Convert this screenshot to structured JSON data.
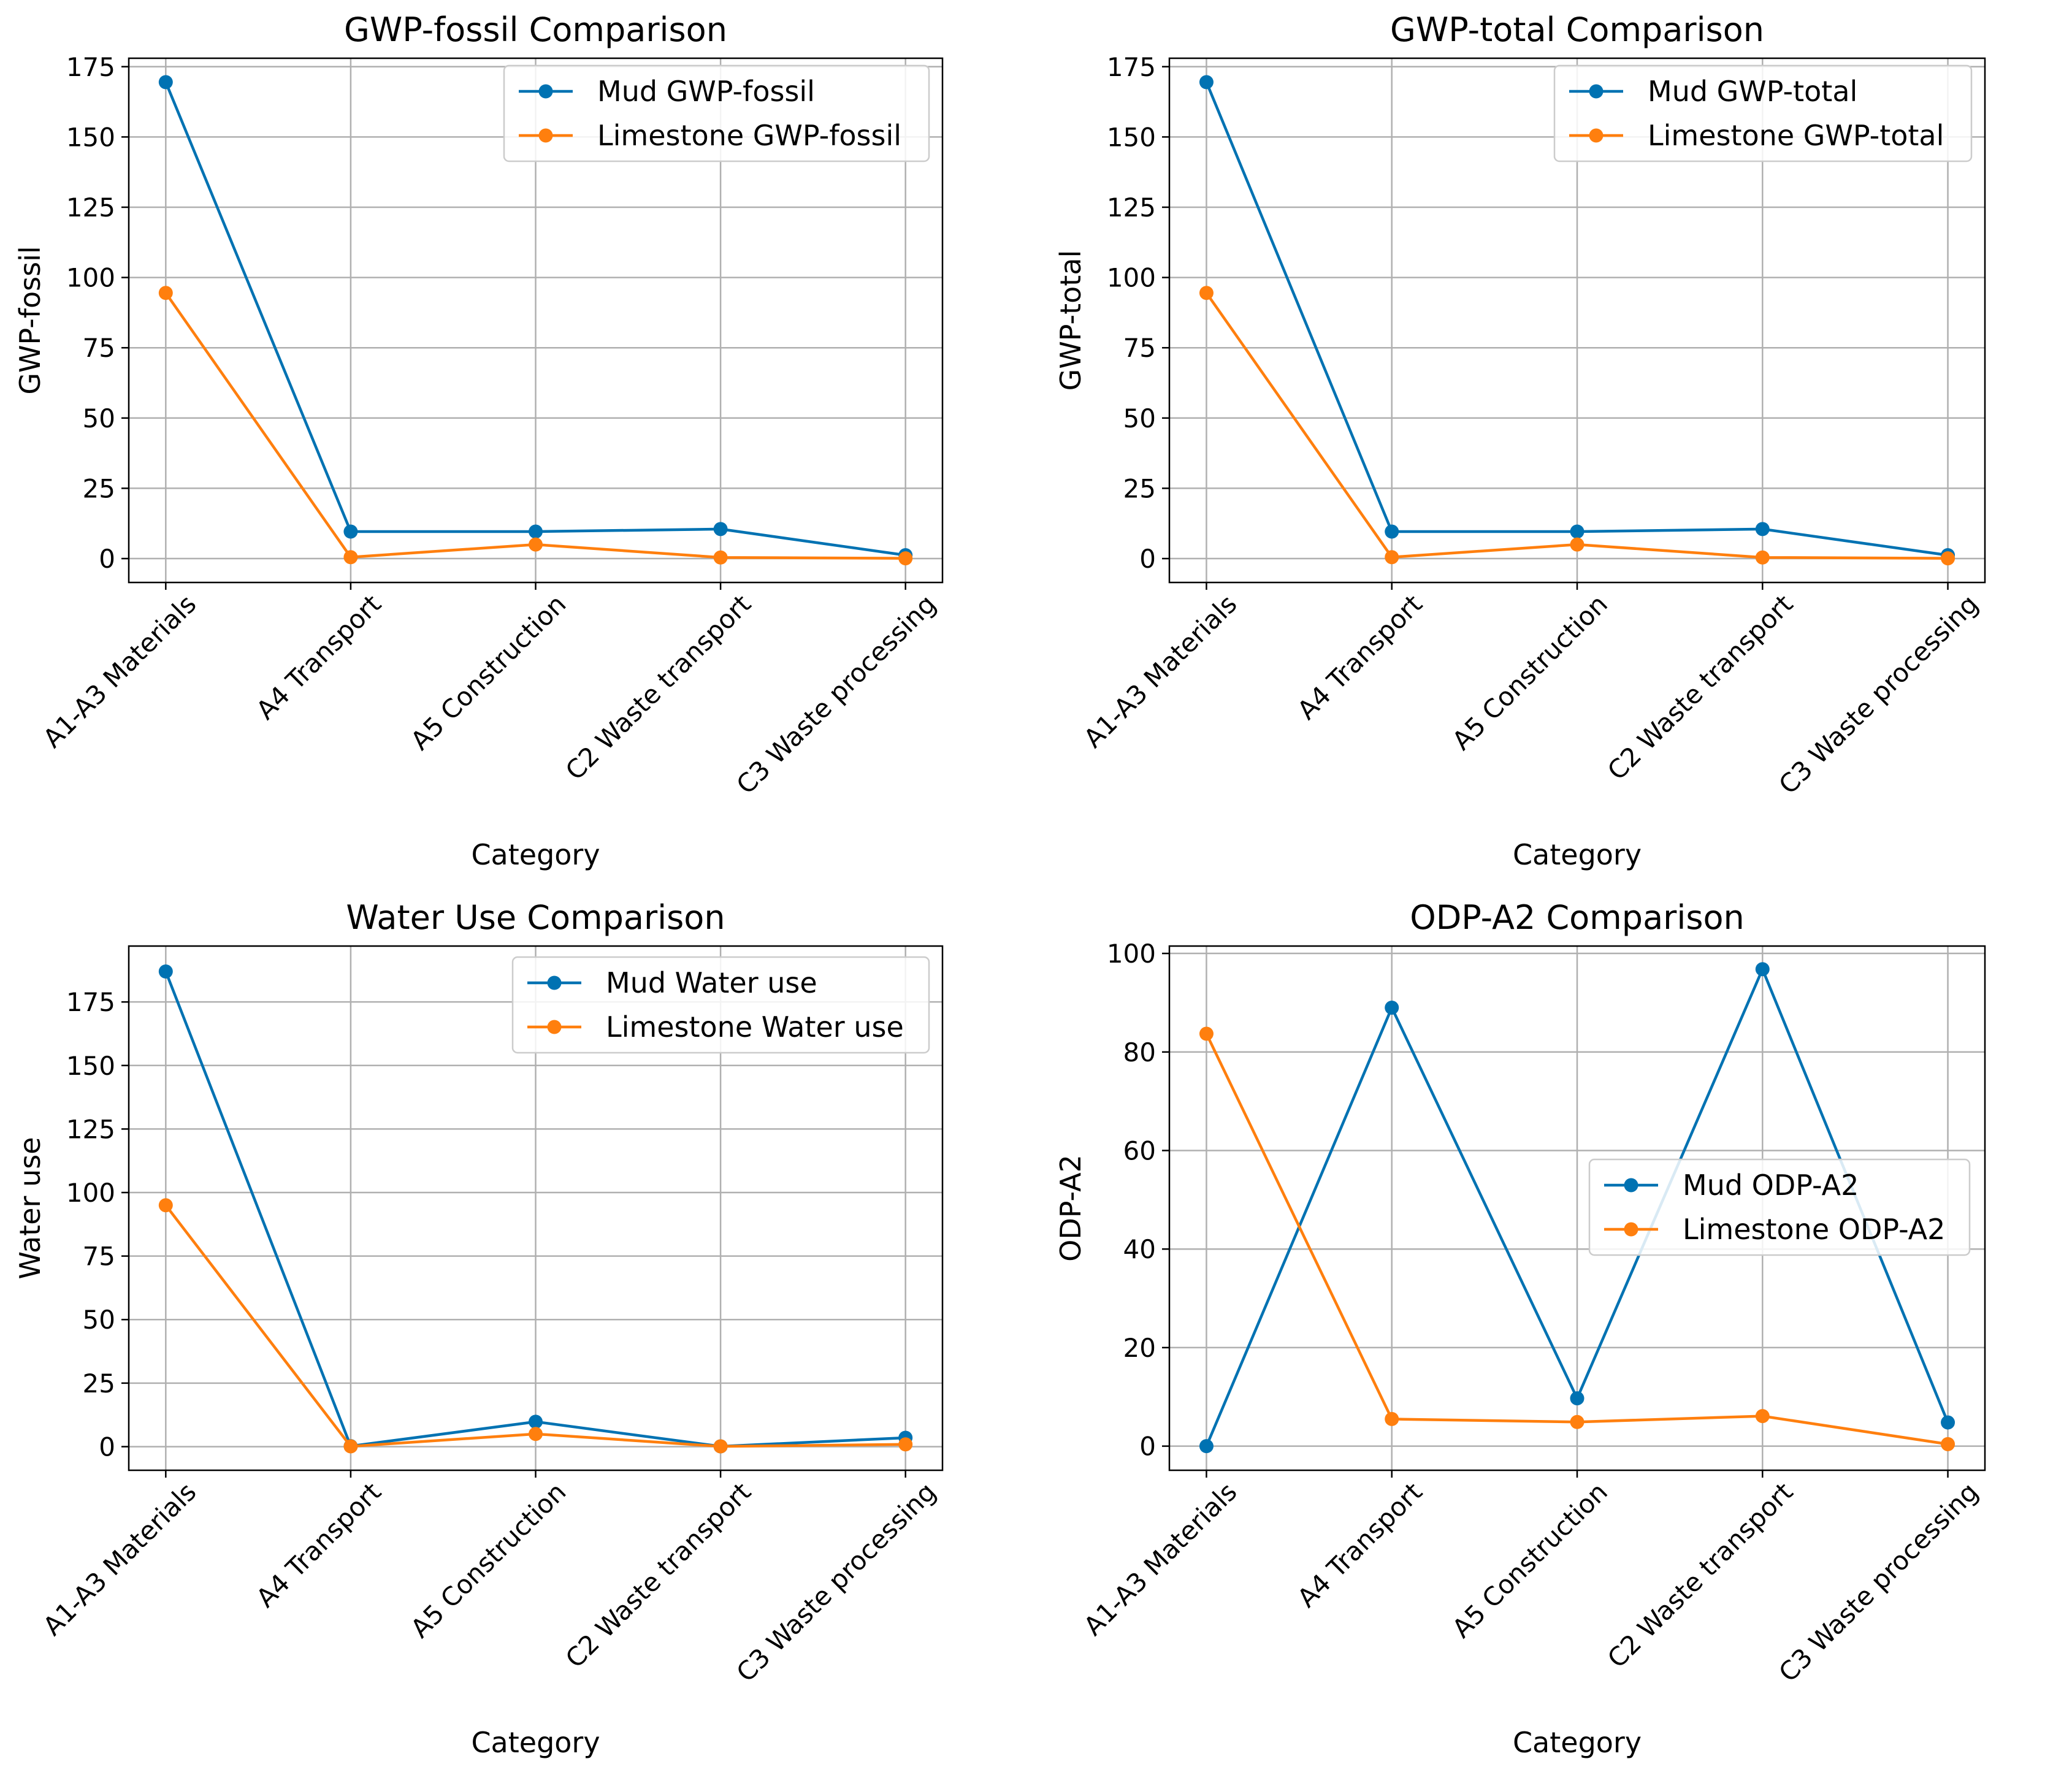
{
  "chart_data": [
    {
      "type": "line",
      "title": "GWP-fossil Comparison",
      "xlabel": "Category",
      "ylabel": "GWP-fossil",
      "categories": [
        "A1-A3 Materials",
        "A4 Transport",
        "A5 Construction",
        "C2 Waste transport",
        "C3 Waste processing"
      ],
      "ylim": [
        -8.5,
        178
      ],
      "yticks": [
        0,
        25,
        50,
        75,
        100,
        125,
        150,
        175
      ],
      "grid": true,
      "legend_position": "upper right",
      "series": [
        {
          "name": "Mud GWP-fossil",
          "color": "#0072B2",
          "values": [
            169.5,
            9.6,
            9.6,
            10.5,
            1.2
          ]
        },
        {
          "name": "Limestone GWP-fossil",
          "color": "#FF7F0E",
          "values": [
            94.5,
            0.5,
            5.0,
            0.4,
            0.1
          ]
        }
      ]
    },
    {
      "type": "line",
      "title": "GWP-total Comparison",
      "xlabel": "Category",
      "ylabel": "GWP-total",
      "categories": [
        "A1-A3 Materials",
        "A4 Transport",
        "A5 Construction",
        "C2 Waste transport",
        "C3 Waste processing"
      ],
      "ylim": [
        -8.5,
        178
      ],
      "yticks": [
        0,
        25,
        50,
        75,
        100,
        125,
        150,
        175
      ],
      "grid": true,
      "legend_position": "upper right",
      "series": [
        {
          "name": "Mud GWP-total",
          "color": "#0072B2",
          "values": [
            169.5,
            9.6,
            9.6,
            10.5,
            1.2
          ]
        },
        {
          "name": "Limestone GWP-total",
          "color": "#FF7F0E",
          "values": [
            94.5,
            0.5,
            5.0,
            0.4,
            0.1
          ]
        }
      ]
    },
    {
      "type": "line",
      "title": "Water Use Comparison",
      "xlabel": "Category",
      "ylabel": "Water use",
      "categories": [
        "A1-A3 Materials",
        "A4 Transport",
        "A5 Construction",
        "C2 Waste transport",
        "C3 Waste processing"
      ],
      "ylim": [
        -9.3,
        197
      ],
      "yticks": [
        0,
        25,
        50,
        75,
        100,
        125,
        150,
        175
      ],
      "grid": true,
      "legend_position": "upper right",
      "series": [
        {
          "name": "Mud Water use",
          "color": "#0072B2",
          "values": [
            187.0,
            0.2,
            9.8,
            0.1,
            3.5
          ]
        },
        {
          "name": "Limestone Water use",
          "color": "#FF7F0E",
          "values": [
            95.0,
            0.1,
            5.0,
            0.1,
            0.9
          ]
        }
      ]
    },
    {
      "type": "line",
      "title": "ODP-A2 Comparison",
      "xlabel": "Category",
      "ylabel": "ODP-A2",
      "categories": [
        "A1-A3 Materials",
        "A4 Transport",
        "A5 Construction",
        "C2 Waste transport",
        "C3 Waste processing"
      ],
      "ylim": [
        -4.9,
        101.5
      ],
      "yticks": [
        0,
        20,
        40,
        60,
        80,
        100
      ],
      "grid": true,
      "legend_position": "center right",
      "series": [
        {
          "name": "Mud ODP-A2",
          "color": "#0072B2",
          "values": [
            0.0,
            89.0,
            9.7,
            96.8,
            4.8
          ]
        },
        {
          "name": "Limestone ODP-A2",
          "color": "#FF7F0E",
          "values": [
            83.7,
            5.5,
            4.9,
            6.1,
            0.4
          ]
        }
      ]
    }
  ]
}
